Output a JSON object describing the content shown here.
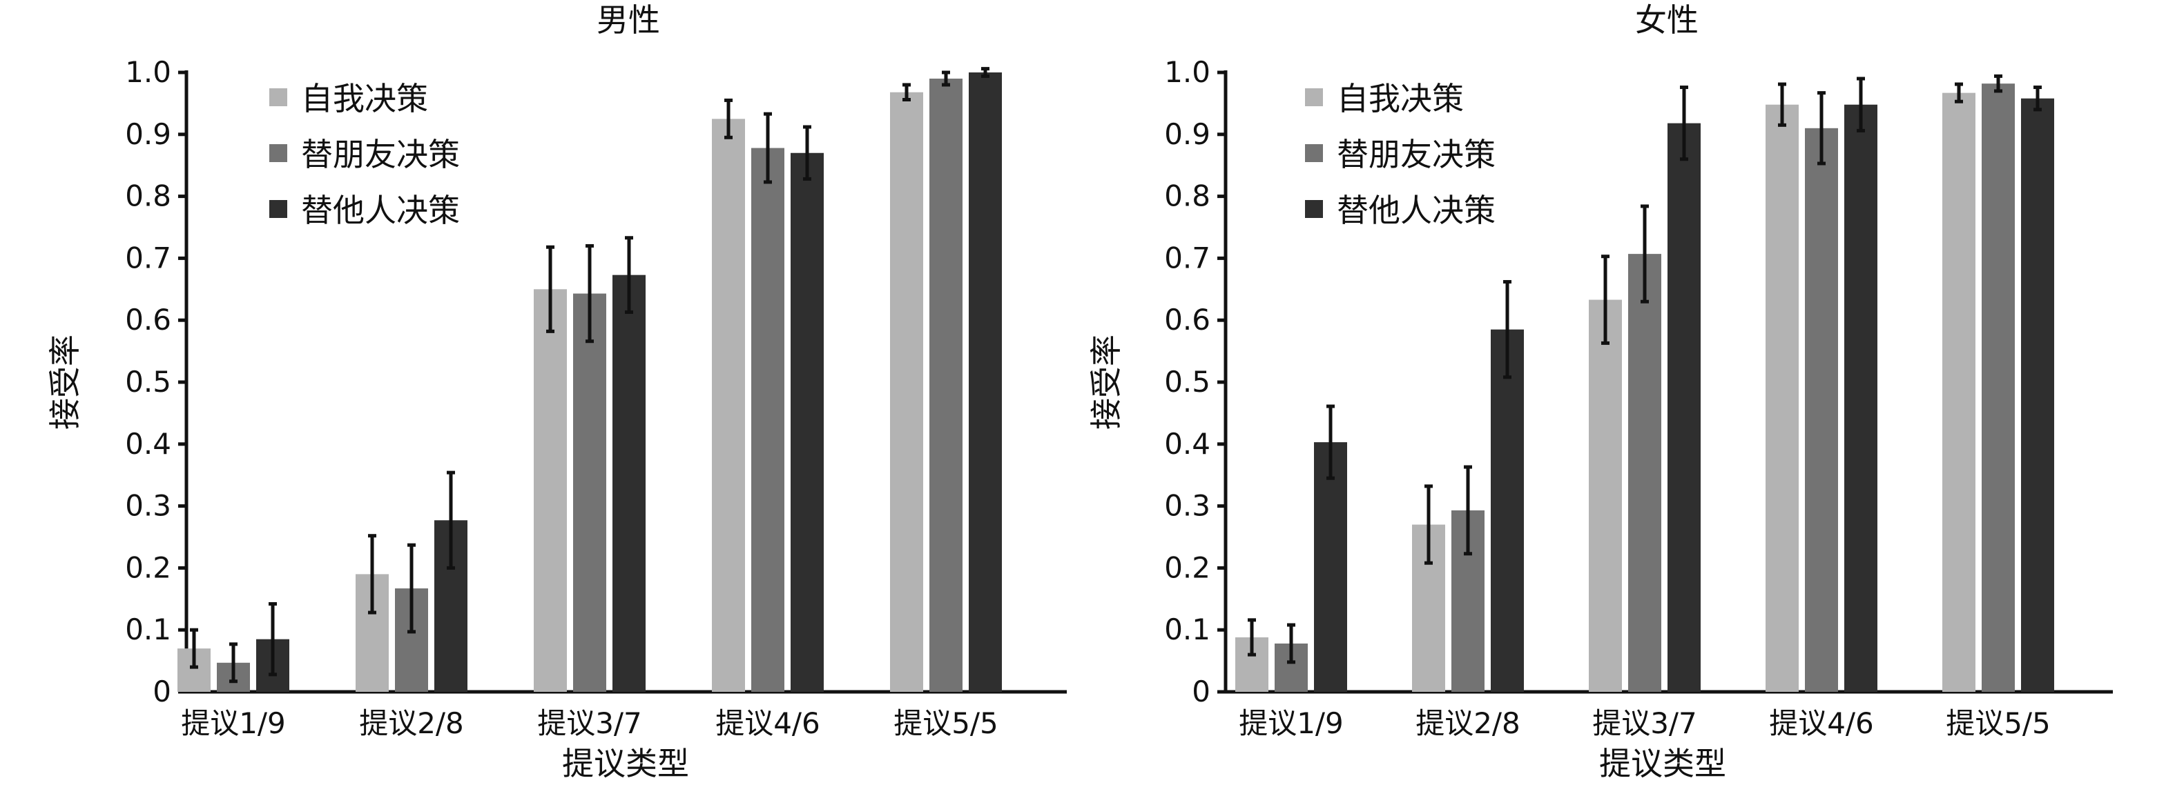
{
  "colors": {
    "self": "#b3b3b3",
    "friend": "#737373",
    "other": "#2f2f2f"
  },
  "chart_data": [
    {
      "type": "bar",
      "title": "男性",
      "xlabel": "提议类型",
      "ylabel": "接受率",
      "ylim": [
        0,
        1.0
      ],
      "yticks": [
        "0",
        "0.1",
        "0.2",
        "0.3",
        "0.4",
        "0.5",
        "0.6",
        "0.7",
        "0.8",
        "0.9",
        "1.0"
      ],
      "legend_position": "top-left",
      "categories": [
        "提议1/9",
        "提议2/8",
        "提议3/7",
        "提议4/6",
        "提议5/5"
      ],
      "series": [
        {
          "name": "自我决策",
          "key": "self",
          "values": [
            0.07,
            0.19,
            0.65,
            0.925,
            0.968
          ],
          "errors": [
            0.03,
            0.062,
            0.068,
            0.03,
            0.012
          ]
        },
        {
          "name": "替朋友决策",
          "key": "friend",
          "values": [
            0.047,
            0.167,
            0.643,
            0.878,
            0.99
          ],
          "errors": [
            0.03,
            0.07,
            0.077,
            0.055,
            0.01
          ]
        },
        {
          "name": "替他人决策",
          "key": "other",
          "values": [
            0.085,
            0.277,
            0.673,
            0.87,
            1.0
          ],
          "errors": [
            0.057,
            0.077,
            0.06,
            0.042,
            0.006
          ]
        }
      ]
    },
    {
      "type": "bar",
      "title": "女性",
      "xlabel": "提议类型",
      "ylabel": "接受率",
      "ylim": [
        0,
        1.0
      ],
      "yticks": [
        "0",
        "0.1",
        "0.2",
        "0.3",
        "0.4",
        "0.5",
        "0.6",
        "0.7",
        "0.8",
        "0.9",
        "1.0"
      ],
      "legend_position": "top-left",
      "categories": [
        "提议1/9",
        "提议2/8",
        "提议3/7",
        "提议4/6",
        "提议5/5"
      ],
      "series": [
        {
          "name": "自我决策",
          "key": "self",
          "values": [
            0.088,
            0.27,
            0.633,
            0.948,
            0.967
          ],
          "errors": [
            0.028,
            0.062,
            0.07,
            0.033,
            0.014
          ]
        },
        {
          "name": "替朋友决策",
          "key": "friend",
          "values": [
            0.078,
            0.293,
            0.707,
            0.91,
            0.982
          ],
          "errors": [
            0.03,
            0.07,
            0.077,
            0.057,
            0.012
          ]
        },
        {
          "name": "替他人决策",
          "key": "other",
          "values": [
            0.403,
            0.585,
            0.918,
            0.948,
            0.958
          ],
          "errors": [
            0.058,
            0.077,
            0.058,
            0.042,
            0.018
          ]
        }
      ]
    }
  ]
}
